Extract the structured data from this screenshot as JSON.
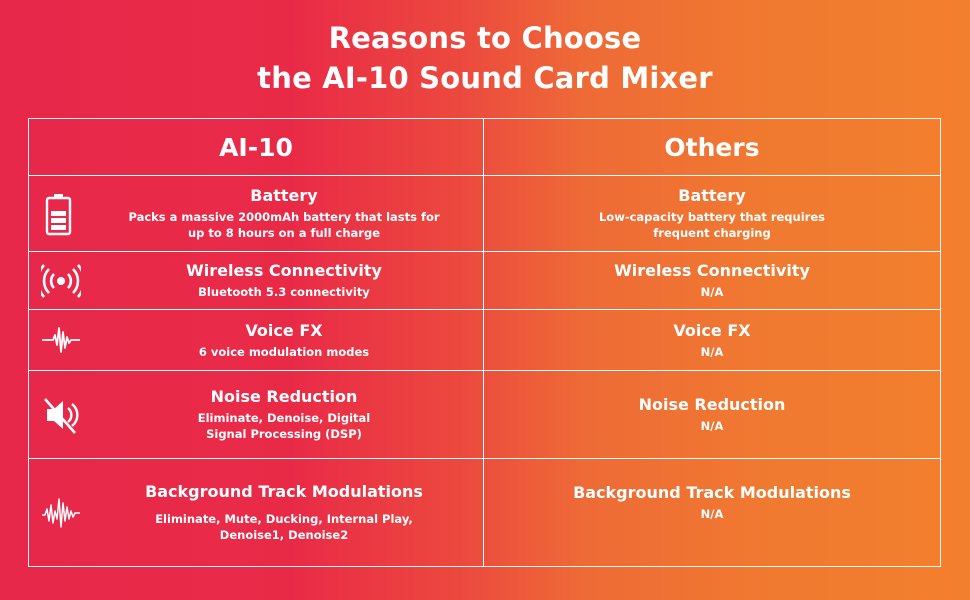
{
  "title": [
    "Reasons to Choose",
    "the AI-10 Sound Card Mixer"
  ],
  "headers": {
    "left": "AI-10",
    "right": "Others"
  },
  "rows": [
    {
      "icon": "battery-icon",
      "left": {
        "feature": "Battery",
        "desc": [
          "Packs a massive 2000mAh battery that lasts for",
          "up to 8 hours on a full charge"
        ]
      },
      "right": {
        "feature": "Battery",
        "desc": [
          "Low-capacity battery that requires",
          "frequent charging"
        ]
      }
    },
    {
      "icon": "wireless-icon",
      "left": {
        "feature": "Wireless Connectivity",
        "desc": [
          "Bluetooth 5.3 connectivity"
        ]
      },
      "right": {
        "feature": "Wireless Connectivity",
        "desc": [
          "N/A"
        ]
      }
    },
    {
      "icon": "waveform-icon",
      "left": {
        "feature": "Voice FX",
        "desc": [
          "6 voice modulation modes"
        ]
      },
      "right": {
        "feature": "Voice FX",
        "desc": [
          "N/A"
        ]
      }
    },
    {
      "icon": "mute-speaker-icon",
      "left": {
        "feature": "Noise Reduction",
        "desc": [
          "Eliminate, Denoise, Digital",
          "Signal Processing (DSP)"
        ]
      },
      "right": {
        "feature": "Noise Reduction",
        "desc": [
          "N/A"
        ]
      }
    },
    {
      "icon": "sound-wave-icon",
      "left": {
        "feature": "Background Track Modulations",
        "desc": [
          "Eliminate, Mute, Ducking, Internal Play,",
          "Denoise1, Denoise2"
        ]
      },
      "right": {
        "feature": "Background Track Modulations",
        "desc": [
          "N/A"
        ]
      }
    }
  ]
}
